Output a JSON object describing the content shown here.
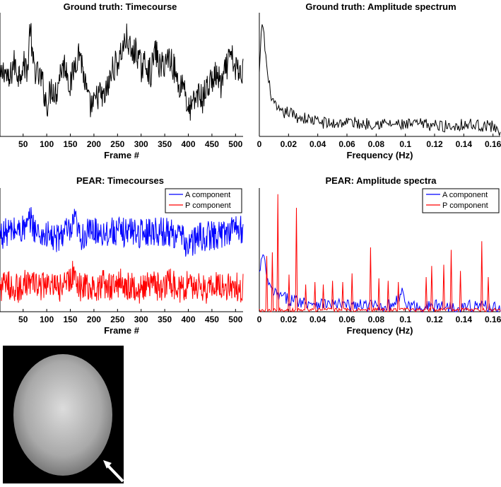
{
  "chart_data": [
    {
      "type": "line",
      "title": "Ground truth: Timecourse",
      "xlabel": "Frame #",
      "ylabel": "",
      "xlim": [
        1,
        516
      ],
      "ylim": [
        0,
        1
      ],
      "xticks": [
        50,
        100,
        150,
        200,
        250,
        300,
        350,
        400,
        450,
        500
      ],
      "legend": "none",
      "series": [
        {
          "color": "#000000",
          "x": [
            1,
            10,
            20,
            30,
            40,
            50,
            60,
            65,
            70,
            80,
            90,
            100,
            110,
            120,
            130,
            140,
            150,
            160,
            170,
            180,
            190,
            200,
            210,
            220,
            230,
            240,
            250,
            260,
            270,
            280,
            290,
            300,
            310,
            320,
            330,
            340,
            350,
            360,
            370,
            380,
            390,
            400,
            410,
            420,
            430,
            440,
            450,
            460,
            470,
            480,
            490,
            500,
            510,
            516
          ],
          "values": [
            0.45,
            0.55,
            0.42,
            0.6,
            0.5,
            0.58,
            0.55,
            0.92,
            0.6,
            0.5,
            0.45,
            0.25,
            0.4,
            0.35,
            0.55,
            0.58,
            0.4,
            0.6,
            0.7,
            0.45,
            0.25,
            0.25,
            0.35,
            0.3,
            0.4,
            0.55,
            0.6,
            0.7,
            0.8,
            0.65,
            0.7,
            0.55,
            0.6,
            0.5,
            0.7,
            0.55,
            0.6,
            0.65,
            0.55,
            0.4,
            0.45,
            0.2,
            0.25,
            0.35,
            0.3,
            0.4,
            0.45,
            0.5,
            0.4,
            0.55,
            0.65,
            0.55,
            0.5,
            0.55
          ]
        }
      ]
    },
    {
      "type": "line",
      "title": "Ground truth: Amplitude spectrum",
      "xlabel": "Frequency (Hz)",
      "ylabel": "",
      "xlim": [
        0,
        0.165
      ],
      "ylim": [
        0,
        1
      ],
      "xticks": [
        0,
        0.02,
        0.04,
        0.06,
        0.08,
        0.1,
        0.12,
        0.14,
        0.16
      ],
      "legend": "none",
      "series": [
        {
          "color": "#000000",
          "x": [
            0,
            0.002,
            0.004,
            0.006,
            0.008,
            0.01,
            0.015,
            0.02,
            0.025,
            0.03,
            0.04,
            0.05,
            0.06,
            0.07,
            0.08,
            0.09,
            0.1,
            0.11,
            0.12,
            0.13,
            0.14,
            0.15,
            0.16,
            0.165
          ],
          "values": [
            0.5,
            0.95,
            0.7,
            0.45,
            0.35,
            0.25,
            0.18,
            0.2,
            0.16,
            0.15,
            0.12,
            0.1,
            0.12,
            0.1,
            0.11,
            0.1,
            0.09,
            0.1,
            0.09,
            0.08,
            0.1,
            0.09,
            0.08,
            0.05
          ]
        }
      ]
    },
    {
      "type": "line",
      "title": "PEAR: Timecourses",
      "xlabel": "Frame #",
      "ylabel": "",
      "xlim": [
        1,
        516
      ],
      "ylim": [
        0,
        1
      ],
      "xticks": [
        50,
        100,
        150,
        200,
        250,
        300,
        350,
        400,
        450,
        500
      ],
      "legend": "top-right",
      "series": [
        {
          "name": "A component",
          "color": "#0000ff",
          "x": [
            1,
            20,
            40,
            60,
            65,
            80,
            100,
            120,
            140,
            150,
            160,
            170,
            180,
            200,
            220,
            240,
            260,
            280,
            300,
            320,
            340,
            360,
            380,
            400,
            420,
            440,
            460,
            480,
            500,
            510,
            516
          ],
          "values": [
            0.62,
            0.65,
            0.66,
            0.68,
            0.75,
            0.63,
            0.62,
            0.58,
            0.66,
            0.62,
            0.74,
            0.6,
            0.62,
            0.66,
            0.64,
            0.65,
            0.64,
            0.66,
            0.63,
            0.66,
            0.65,
            0.64,
            0.62,
            0.53,
            0.6,
            0.61,
            0.62,
            0.64,
            0.7,
            0.65,
            0.68
          ]
        },
        {
          "name": "P component",
          "color": "#ff0000",
          "x": [
            1,
            20,
            40,
            60,
            80,
            100,
            120,
            140,
            160,
            170,
            180,
            200,
            220,
            240,
            260,
            280,
            300,
            320,
            340,
            360,
            380,
            400,
            420,
            440,
            460,
            480,
            500,
            510,
            516
          ],
          "values": [
            0.2,
            0.22,
            0.18,
            0.25,
            0.2,
            0.22,
            0.18,
            0.22,
            0.32,
            0.2,
            0.22,
            0.18,
            0.22,
            0.2,
            0.24,
            0.2,
            0.18,
            0.22,
            0.2,
            0.24,
            0.18,
            0.22,
            0.2,
            0.18,
            0.24,
            0.2,
            0.22,
            0.18,
            0.2
          ]
        }
      ]
    },
    {
      "type": "line",
      "title": "PEAR: Amplitude spectra",
      "xlabel": "Frequency (Hz)",
      "ylabel": "",
      "xlim": [
        0,
        0.165
      ],
      "ylim": [
        0,
        1
      ],
      "xticks": [
        0,
        0.02,
        0.04,
        0.06,
        0.08,
        0.1,
        0.12,
        0.14,
        0.16
      ],
      "legend": "top-right",
      "series": [
        {
          "name": "A component",
          "color": "#0000ff",
          "x": [
            0,
            0.002,
            0.004,
            0.006,
            0.008,
            0.01,
            0.015,
            0.02,
            0.025,
            0.03,
            0.04,
            0.05,
            0.06,
            0.07,
            0.08,
            0.09,
            0.099,
            0.1,
            0.11,
            0.12,
            0.13,
            0.14,
            0.15,
            0.16,
            0.165
          ],
          "values": [
            0.3,
            0.45,
            0.38,
            0.22,
            0.18,
            0.15,
            0.12,
            0.1,
            0.09,
            0.08,
            0.07,
            0.06,
            0.05,
            0.05,
            0.05,
            0.05,
            0.16,
            0.05,
            0.04,
            0.05,
            0.04,
            0.04,
            0.05,
            0.04,
            0.03
          ]
        },
        {
          "name": "P component",
          "color": "#ff0000",
          "peaks": [
            [
              0.005,
              0.45
            ],
            [
              0.009,
              0.48
            ],
            [
              0.0125,
              0.95
            ],
            [
              0.02,
              0.3
            ],
            [
              0.0255,
              0.84
            ],
            [
              0.032,
              0.22
            ],
            [
              0.038,
              0.24
            ],
            [
              0.044,
              0.22
            ],
            [
              0.05,
              0.25
            ],
            [
              0.057,
              0.24
            ],
            [
              0.0635,
              0.31
            ],
            [
              0.076,
              0.52
            ],
            [
              0.082,
              0.27
            ],
            [
              0.088,
              0.25
            ],
            [
              0.095,
              0.24
            ],
            [
              0.114,
              0.28
            ],
            [
              0.118,
              0.37
            ],
            [
              0.126,
              0.38
            ],
            [
              0.1315,
              0.5
            ],
            [
              0.138,
              0.33
            ],
            [
              0.152,
              0.57
            ],
            [
              0.157,
              0.28
            ]
          ]
        }
      ]
    }
  ]
}
